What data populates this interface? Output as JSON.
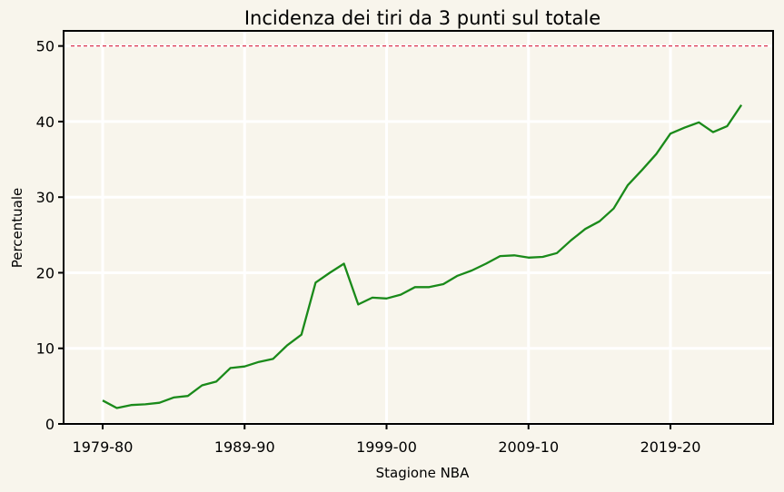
{
  "chart_data": {
    "type": "line",
    "title": "Incidenza dei tiri da 3 punti sul totale",
    "xlabel": "Stagione NBA",
    "ylabel": "Percentuale",
    "ylim": [
      0,
      52
    ],
    "y_ticks": [
      0,
      10,
      20,
      30,
      40,
      50
    ],
    "x_ticks": [
      "1979-80",
      "1989-90",
      "1999-00",
      "2009-10",
      "2019-20"
    ],
    "grid": true,
    "reference_line": {
      "y": 50,
      "style": "dashed",
      "color": "#d9304a"
    },
    "colors": {
      "series": "#1a8a1a",
      "background": "#f8f5ec",
      "plot_bg": "#f8f5ec",
      "grid": "#ffffff"
    },
    "series": [
      {
        "x": [
          "1979-80",
          "1980-81",
          "1981-82",
          "1982-83",
          "1983-84",
          "1984-85",
          "1985-86",
          "1986-87",
          "1987-88",
          "1988-89",
          "1989-90",
          "1990-91",
          "1991-92",
          "1992-93",
          "1993-94",
          "1994-95",
          "1995-96",
          "1996-97",
          "1997-98",
          "1998-99",
          "1999-00",
          "2000-01",
          "2001-02",
          "2002-03",
          "2003-04",
          "2004-05",
          "2005-06",
          "2006-07",
          "2007-08",
          "2008-09",
          "2009-10",
          "2010-11",
          "2011-12",
          "2012-13",
          "2013-14",
          "2014-15",
          "2015-16",
          "2016-17",
          "2017-18",
          "2018-19",
          "2019-20",
          "2020-21",
          "2021-22",
          "2022-23",
          "2023-24",
          "2024-25"
        ],
        "values": [
          3.1,
          2.1,
          2.5,
          2.6,
          2.8,
          3.5,
          3.7,
          5.1,
          5.6,
          7.4,
          7.6,
          8.2,
          8.6,
          10.4,
          11.8,
          18.7,
          20.0,
          21.2,
          15.8,
          16.7,
          16.6,
          17.1,
          18.1,
          18.1,
          18.5,
          19.6,
          20.3,
          21.2,
          22.2,
          22.3,
          22.0,
          22.1,
          22.6,
          24.3,
          25.8,
          26.8,
          28.5,
          31.6,
          33.6,
          35.7,
          38.4,
          39.2,
          39.9,
          38.6,
          39.4,
          42.2
        ]
      }
    ]
  }
}
